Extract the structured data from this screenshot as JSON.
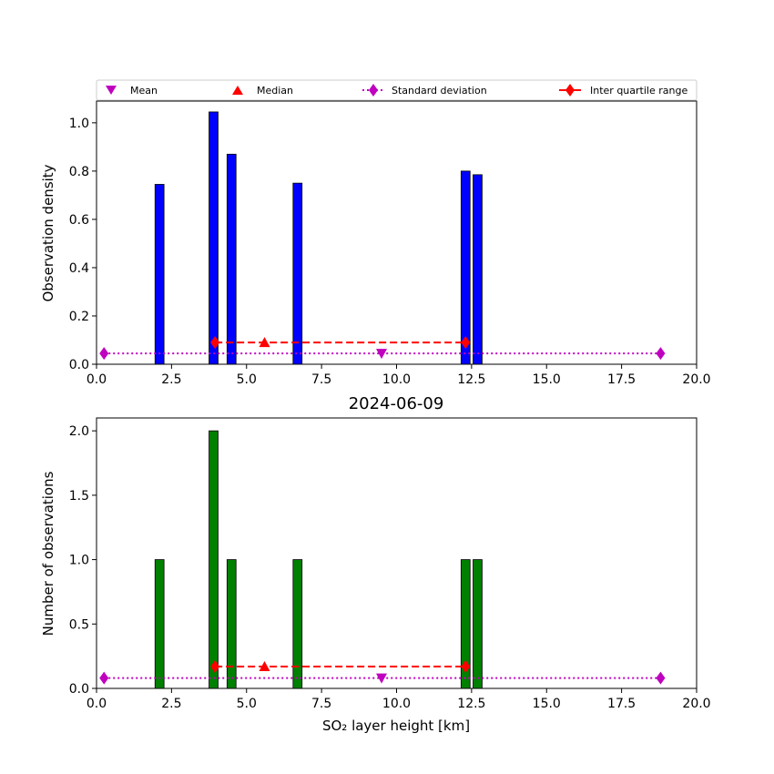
{
  "chart_data": [
    {
      "type": "bar",
      "panel": "top",
      "title": "",
      "xlabel": "",
      "ylabel": "Observation density",
      "xlim": [
        0,
        20
      ],
      "ylim": [
        0,
        1.09
      ],
      "xticks": [
        "0.0",
        "2.5",
        "5.0",
        "7.5",
        "10.0",
        "12.5",
        "15.0",
        "17.5",
        "20.0"
      ],
      "yticks": [
        "0.0",
        "0.2",
        "0.4",
        "0.6",
        "0.8",
        "1.0"
      ],
      "bar_color": "#0000ff",
      "bars": [
        {
          "x": 2.1,
          "value": 0.745
        },
        {
          "x": 3.9,
          "value": 1.045
        },
        {
          "x": 4.5,
          "value": 0.87
        },
        {
          "x": 6.7,
          "value": 0.75
        },
        {
          "x": 12.3,
          "value": 0.8
        },
        {
          "x": 12.7,
          "value": 0.785
        }
      ],
      "stats": {
        "mean": {
          "x": 9.5,
          "y": 0.045
        },
        "median": {
          "x": 5.6,
          "y": 0.09
        },
        "std_range": {
          "x": [
            0.25,
            18.8
          ],
          "y": 0.045
        },
        "iqr_range": {
          "x": [
            3.95,
            12.3
          ],
          "y": 0.09
        }
      },
      "legend": {
        "placement": "top",
        "entries": [
          "Mean",
          "Median",
          "Standard deviation",
          "Inter quartile range"
        ]
      }
    },
    {
      "type": "bar",
      "panel": "bottom",
      "title": "2024-06-09",
      "xlabel": "SO₂ layer height [km]",
      "ylabel": "Number of observations",
      "xlim": [
        0,
        20
      ],
      "ylim": [
        0,
        2.1
      ],
      "xticks": [
        "0.0",
        "2.5",
        "5.0",
        "7.5",
        "10.0",
        "12.5",
        "15.0",
        "17.5",
        "20.0"
      ],
      "yticks": [
        "0.0",
        "0.5",
        "1.0",
        "1.5",
        "2.0"
      ],
      "bar_color": "#008000",
      "bars": [
        {
          "x": 2.1,
          "value": 1
        },
        {
          "x": 3.9,
          "value": 2
        },
        {
          "x": 4.5,
          "value": 1
        },
        {
          "x": 6.7,
          "value": 1
        },
        {
          "x": 12.3,
          "value": 1
        },
        {
          "x": 12.7,
          "value": 1
        }
      ],
      "stats": {
        "mean": {
          "x": 9.5,
          "y": 0.08
        },
        "median": {
          "x": 5.6,
          "y": 0.17
        },
        "std_range": {
          "x": [
            0.25,
            18.8
          ],
          "y": 0.08
        },
        "iqr_range": {
          "x": [
            3.95,
            12.3
          ],
          "y": 0.17
        }
      }
    }
  ],
  "colors": {
    "mean": "#bf00bf",
    "median": "#ff0000",
    "std": "#bf00bf",
    "iqr": "#ff0000"
  }
}
